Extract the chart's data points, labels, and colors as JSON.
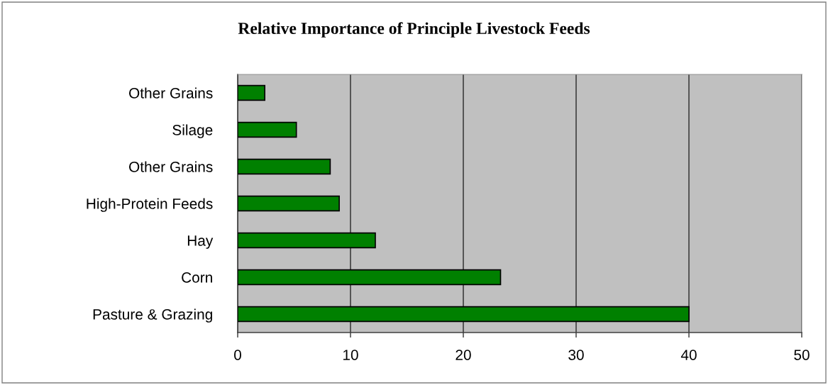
{
  "chart_data": {
    "type": "bar",
    "orientation": "horizontal",
    "title": "Relative Importance of Principle Livestock Feeds",
    "categories": [
      "Other Grains",
      "Silage",
      "Other Grains",
      "High-Protein Feeds",
      "Hay",
      "Corn",
      "Pasture & Grazing"
    ],
    "values": [
      2.4,
      5.2,
      8.2,
      9.0,
      12.2,
      23.3,
      40
    ],
    "color": "#008000",
    "xlim": [
      0,
      50
    ],
    "xticks": [
      0,
      10,
      20,
      30,
      40,
      50
    ],
    "grid": "x",
    "legend": false
  }
}
